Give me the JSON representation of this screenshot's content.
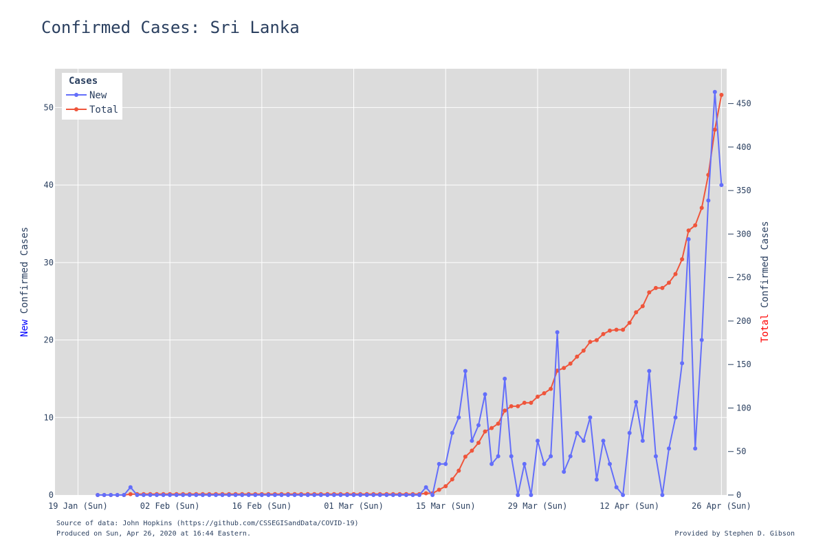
{
  "title": "Confirmed Cases: Sri Lanka",
  "footer": {
    "source": "Source of data: John Hopkins (https://github.com/CSSEGISandData/COVID-19)",
    "produced": "Produced on Sun, Apr 26, 2020 at 16:44 Eastern.",
    "provided": "Provided by Stephen D. Gibson"
  },
  "chart_data": {
    "type": "line",
    "xaxis": {
      "start_date": "2020-01-22",
      "end_date": "2020-04-26",
      "range": [
        "2020-01-19",
        "2020-04-26"
      ],
      "tick_labels": [
        "19 Jan (Sun)",
        "02 Feb (Sun)",
        "16 Feb (Sun)",
        "01 Mar (Sun)",
        "15 Mar (Sun)",
        "29 Mar (Sun)",
        "12 Apr (Sun)",
        "26 Apr (Sun)"
      ]
    },
    "yaxis_left": {
      "label_colored": "New",
      "label_rest": " Confirmed Cases",
      "range": [
        0,
        55
      ],
      "ticks": [
        0,
        10,
        20,
        30,
        40,
        50
      ]
    },
    "yaxis_right": {
      "label_colored": "Total",
      "label_rest": " Confirmed Cases",
      "range": [
        0,
        490
      ],
      "ticks": [
        0,
        50,
        100,
        150,
        200,
        250,
        300,
        350,
        400,
        450
      ]
    },
    "legend": {
      "title": "Cases",
      "position": "top-left"
    },
    "grid": true,
    "colors": {
      "new": "#636efa",
      "total": "#ef553b",
      "plot_bg": "#dcdcdc",
      "new_label": "#0000ff",
      "total_label": "#ff0000"
    },
    "series": [
      {
        "name": "New",
        "axis": "left",
        "values": [
          0,
          0,
          0,
          0,
          0,
          1,
          0,
          0,
          0,
          0,
          0,
          0,
          0,
          0,
          0,
          0,
          0,
          0,
          0,
          0,
          0,
          0,
          0,
          0,
          0,
          0,
          0,
          0,
          0,
          0,
          0,
          0,
          0,
          0,
          0,
          0,
          0,
          0,
          0,
          0,
          0,
          0,
          0,
          0,
          0,
          0,
          0,
          0,
          0,
          0,
          1,
          0,
          4,
          4,
          8,
          10,
          16,
          7,
          9,
          13,
          4,
          5,
          15,
          5,
          0,
          4,
          0,
          7,
          4,
          5,
          21,
          3,
          5,
          8,
          7,
          10,
          2,
          7,
          4,
          1,
          0,
          8,
          12,
          7,
          16,
          5,
          0,
          6,
          10,
          17,
          33,
          6,
          20,
          38,
          52,
          40
        ]
      },
      {
        "name": "Total",
        "axis": "right",
        "values": [
          0,
          0,
          0,
          0,
          0,
          1,
          1,
          1,
          1,
          1,
          1,
          1,
          1,
          1,
          1,
          1,
          1,
          1,
          1,
          1,
          1,
          1,
          1,
          1,
          1,
          1,
          1,
          1,
          1,
          1,
          1,
          1,
          1,
          1,
          1,
          1,
          1,
          1,
          1,
          1,
          1,
          1,
          1,
          1,
          1,
          1,
          1,
          1,
          1,
          1,
          2,
          2,
          6,
          10,
          18,
          28,
          44,
          51,
          60,
          73,
          77,
          82,
          97,
          102,
          102,
          106,
          106,
          113,
          117,
          122,
          143,
          146,
          151,
          159,
          166,
          176,
          178,
          185,
          189,
          190,
          190,
          198,
          210,
          217,
          233,
          238,
          238,
          244,
          254,
          271,
          304,
          310,
          330,
          368,
          420,
          460
        ]
      }
    ]
  }
}
